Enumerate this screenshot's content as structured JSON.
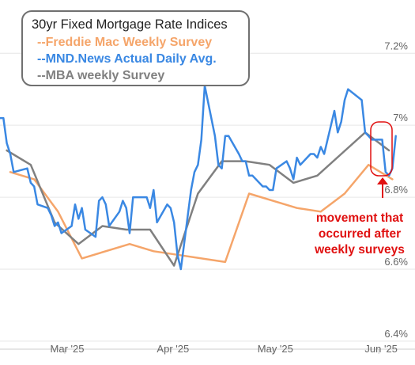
{
  "chart_data": {
    "type": "line",
    "title": "30yr Fixed Mortgage Rate Indices",
    "xlabel": "",
    "ylabel": "",
    "x_tick_labels": [
      "Mar '25",
      "Apr '25",
      "May '25",
      "Jun '25"
    ],
    "y_tick_labels": [
      "6.4%",
      "6.6%",
      "6.8%",
      "7%",
      "7.2%"
    ],
    "y_ticks": [
      6.4,
      6.6,
      6.8,
      7.0,
      7.2
    ],
    "ylim": [
      6.38,
      7.26
    ],
    "xlim": [
      "2025-02-10",
      "2025-06-10"
    ],
    "grid": "horizontal",
    "legend_placement": "top-left",
    "series": [
      {
        "name": "--Freddie Mac Weekly Survey",
        "color": "#f5a56a",
        "points": [
          [
            "2025-02-13",
            6.87
          ],
          [
            "2025-02-20",
            6.85
          ],
          [
            "2025-02-27",
            6.76
          ],
          [
            "2025-03-06",
            6.63
          ],
          [
            "2025-03-27",
            6.65
          ],
          [
            "2025-03-20",
            6.67
          ],
          [
            "2025-04-03",
            6.64
          ],
          [
            "2025-04-17",
            6.62
          ],
          [
            "2025-04-24",
            6.81
          ],
          [
            "2025-05-08",
            6.77
          ],
          [
            "2025-05-15",
            6.76
          ],
          [
            "2025-05-22",
            6.81
          ],
          [
            "2025-05-29",
            6.89
          ],
          [
            "2025-06-05",
            6.85
          ]
        ]
      },
      {
        "name": "--MND.News Actual Daily Avg.",
        "color": "#3a88e3",
        "points": [
          [
            "2025-02-10",
            7.02
          ],
          [
            "2025-02-11",
            7.02
          ],
          [
            "2025-02-12",
            6.95
          ],
          [
            "2025-02-13",
            6.92
          ],
          [
            "2025-02-14",
            6.87
          ],
          [
            "2025-02-18",
            6.88
          ],
          [
            "2025-02-19",
            6.84
          ],
          [
            "2025-02-20",
            6.83
          ],
          [
            "2025-02-21",
            6.78
          ],
          [
            "2025-02-24",
            6.77
          ],
          [
            "2025-02-25",
            6.75
          ],
          [
            "2025-02-26",
            6.72
          ],
          [
            "2025-02-27",
            6.73
          ],
          [
            "2025-02-28",
            6.7
          ],
          [
            "2025-03-03",
            6.72
          ],
          [
            "2025-03-04",
            6.78
          ],
          [
            "2025-03-05",
            6.74
          ],
          [
            "2025-03-06",
            6.77
          ],
          [
            "2025-03-07",
            6.71
          ],
          [
            "2025-03-10",
            6.69
          ],
          [
            "2025-03-11",
            6.79
          ],
          [
            "2025-03-12",
            6.8
          ],
          [
            "2025-03-13",
            6.78
          ],
          [
            "2025-03-14",
            6.72
          ],
          [
            "2025-03-17",
            6.76
          ],
          [
            "2025-03-18",
            6.79
          ],
          [
            "2025-03-19",
            6.77
          ],
          [
            "2025-03-20",
            6.7
          ],
          [
            "2025-03-21",
            6.8
          ],
          [
            "2025-03-24",
            6.8
          ],
          [
            "2025-03-25",
            6.8
          ],
          [
            "2025-03-26",
            6.77
          ],
          [
            "2025-03-27",
            6.82
          ],
          [
            "2025-03-28",
            6.73
          ],
          [
            "2025-03-31",
            6.78
          ],
          [
            "2025-04-01",
            6.77
          ],
          [
            "2025-04-02",
            6.73
          ],
          [
            "2025-04-03",
            6.64
          ],
          [
            "2025-04-04",
            6.6
          ],
          [
            "2025-04-07",
            6.82
          ],
          [
            "2025-04-08",
            6.87
          ],
          [
            "2025-04-09",
            6.89
          ],
          [
            "2025-04-10",
            6.96
          ],
          [
            "2025-04-11",
            7.11
          ],
          [
            "2025-04-14",
            6.97
          ],
          [
            "2025-04-15",
            6.89
          ],
          [
            "2025-04-16",
            6.88
          ],
          [
            "2025-04-17",
            6.97
          ],
          [
            "2025-04-18",
            6.97
          ],
          [
            "2025-04-21",
            6.92
          ],
          [
            "2025-04-22",
            6.9
          ],
          [
            "2025-04-23",
            6.9
          ],
          [
            "2025-04-24",
            6.86
          ],
          [
            "2025-04-25",
            6.86
          ],
          [
            "2025-04-28",
            6.83
          ],
          [
            "2025-04-29",
            6.83
          ],
          [
            "2025-04-30",
            6.82
          ],
          [
            "2025-05-01",
            6.82
          ],
          [
            "2025-05-02",
            6.88
          ],
          [
            "2025-05-05",
            6.9
          ],
          [
            "2025-05-06",
            6.88
          ],
          [
            "2025-05-07",
            6.85
          ],
          [
            "2025-05-08",
            6.91
          ],
          [
            "2025-05-09",
            6.89
          ],
          [
            "2025-05-12",
            6.92
          ],
          [
            "2025-05-13",
            6.92
          ],
          [
            "2025-05-14",
            6.91
          ],
          [
            "2025-05-15",
            6.94
          ],
          [
            "2025-05-16",
            6.92
          ],
          [
            "2025-05-19",
            7.04
          ],
          [
            "2025-05-20",
            6.98
          ],
          [
            "2025-05-21",
            7.01
          ],
          [
            "2025-05-22",
            7.07
          ],
          [
            "2025-05-23",
            7.1
          ],
          [
            "2025-05-27",
            7.07
          ],
          [
            "2025-05-28",
            6.98
          ],
          [
            "2025-05-29",
            6.97
          ],
          [
            "2025-05-30",
            6.96
          ],
          [
            "2025-06-02",
            6.96
          ],
          [
            "2025-06-03",
            6.87
          ],
          [
            "2025-06-04",
            6.86
          ],
          [
            "2025-06-05",
            6.88
          ],
          [
            "2025-06-06",
            6.97
          ]
        ]
      },
      {
        "name": "--MBA weekly Survey",
        "color": "#808080",
        "points": [
          [
            "2025-02-12",
            6.93
          ],
          [
            "2025-02-19",
            6.89
          ],
          [
            "2025-02-26",
            6.73
          ],
          [
            "2025-03-05",
            6.67
          ],
          [
            "2025-03-12",
            6.72
          ],
          [
            "2025-03-19",
            6.71
          ],
          [
            "2025-03-26",
            6.71
          ],
          [
            "2025-04-02",
            6.61
          ],
          [
            "2025-04-09",
            6.81
          ],
          [
            "2025-04-16",
            6.9
          ],
          [
            "2025-04-23",
            6.9
          ],
          [
            "2025-04-30",
            6.89
          ],
          [
            "2025-05-07",
            6.84
          ],
          [
            "2025-05-14",
            6.86
          ],
          [
            "2025-05-21",
            6.92
          ],
          [
            "2025-05-28",
            6.98
          ],
          [
            "2025-06-04",
            6.93
          ]
        ]
      }
    ],
    "annotation": {
      "text_lines": [
        "movement that",
        "occurred after",
        "weekly surveys"
      ],
      "color": "#e01010"
    }
  }
}
